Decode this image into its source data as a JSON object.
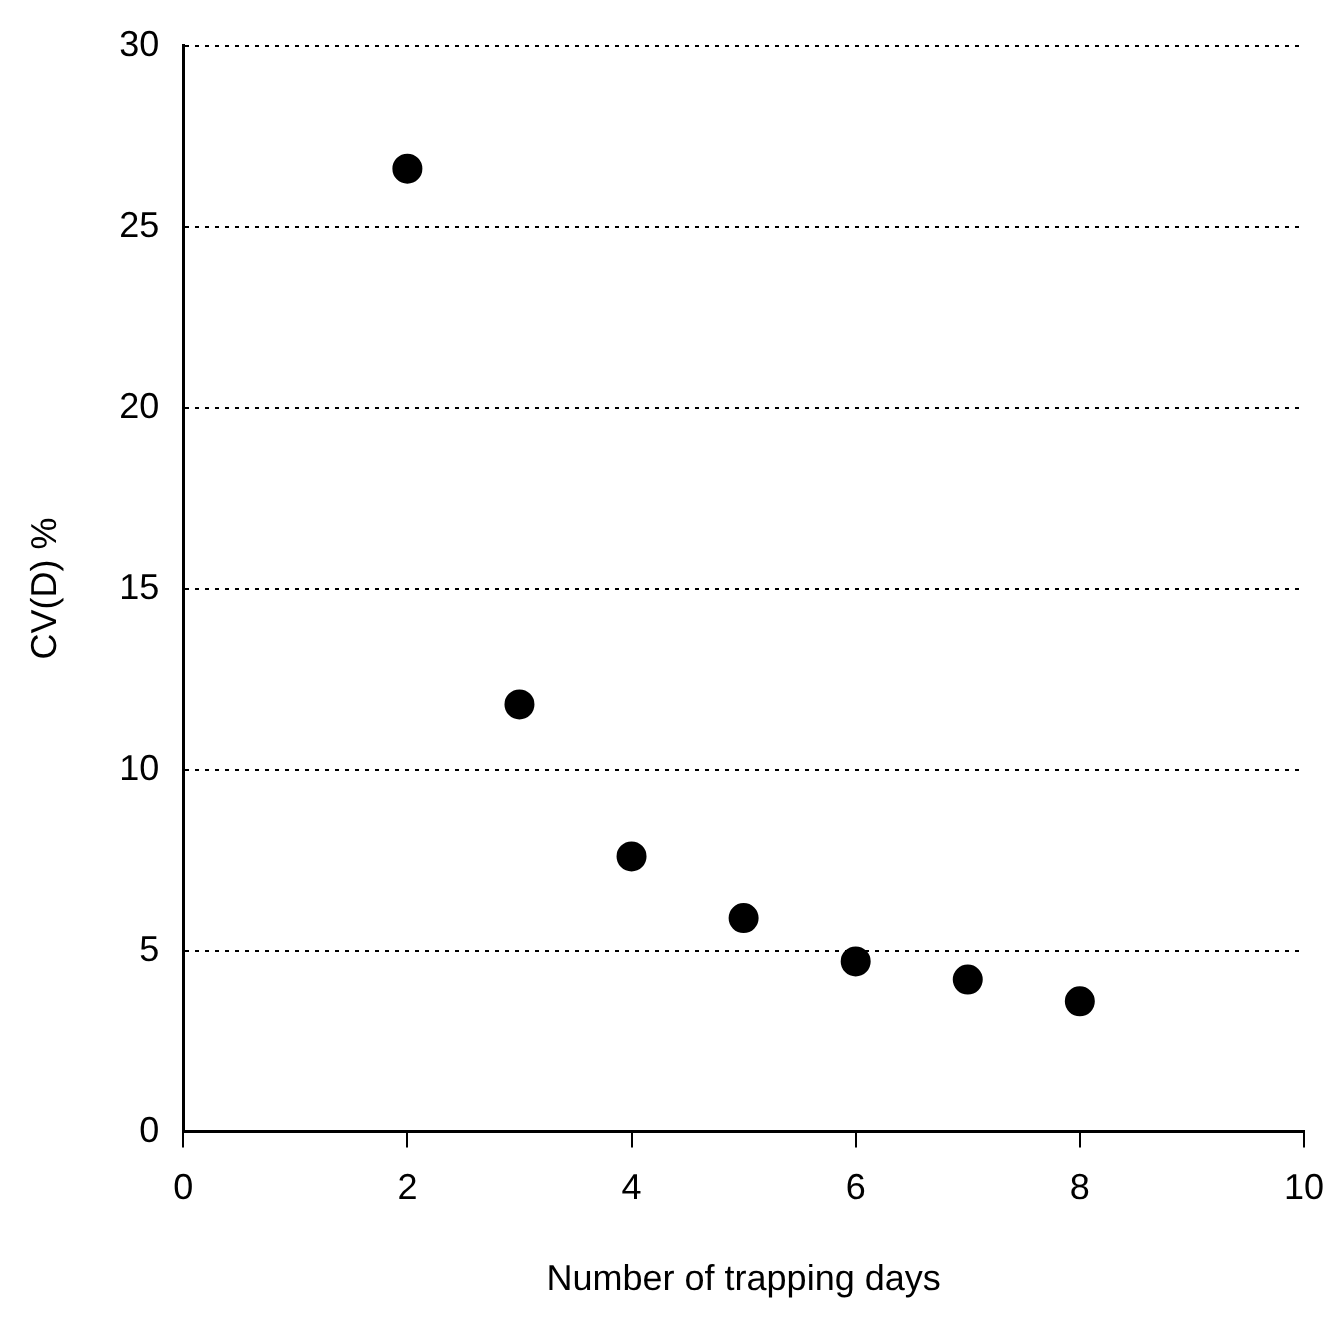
{
  "chart_data": {
    "type": "scatter",
    "xlabel": "Number of trapping days",
    "ylabel": "CV(D) %",
    "x": [
      2,
      3,
      4,
      5,
      6,
      7,
      8
    ],
    "series": [
      {
        "color": "#000000",
        "values": [
          26.6,
          11.8,
          7.6,
          5.9,
          4.7,
          4.2,
          3.6
        ]
      }
    ],
    "xlim": [
      0,
      10
    ],
    "xticks": [
      0,
      2,
      4,
      6,
      8,
      10
    ],
    "ylim": [
      0,
      30
    ],
    "yticks": [
      0,
      5,
      10,
      15,
      20,
      25,
      30
    ],
    "grid": "y",
    "legend": false,
    "marker": "circle"
  }
}
